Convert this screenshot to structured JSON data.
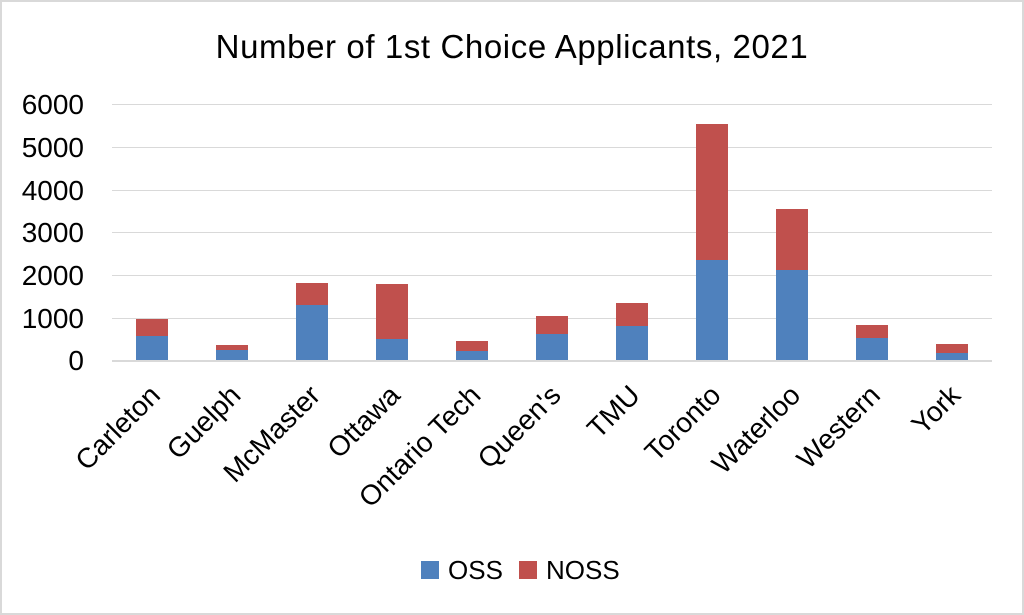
{
  "chart_data": {
    "type": "bar",
    "stacked": true,
    "title": "Number of 1st Choice Applicants, 2021",
    "xlabel": "",
    "ylabel": "",
    "categories": [
      "Carleton",
      "Guelph",
      "McMaster",
      "Ottawa",
      "Ontario Tech",
      "Queen's",
      "TMU",
      "Toronto",
      "Waterloo",
      "Western",
      "York"
    ],
    "series": [
      {
        "name": "OSS",
        "color": "#4f81bd",
        "values": [
          570,
          250,
          1300,
          490,
          225,
          620,
          810,
          2360,
          2120,
          520,
          175
        ]
      },
      {
        "name": "NOSS",
        "color": "#c0504d",
        "values": [
          410,
          120,
          520,
          1310,
          220,
          420,
          540,
          3190,
          1430,
          310,
          220
        ]
      }
    ],
    "ylim": [
      0,
      6000
    ],
    "yticks": [
      0,
      1000,
      2000,
      3000,
      4000,
      5000,
      6000
    ],
    "grid": true,
    "gridline_color": "#d9d9d9",
    "legend_position": "bottom",
    "legend_labels": [
      "OSS",
      "NOSS"
    ]
  }
}
